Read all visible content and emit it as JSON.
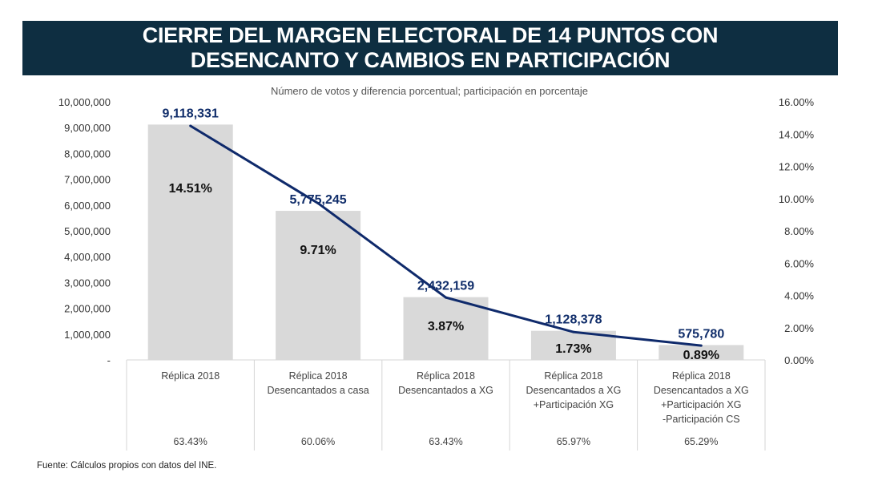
{
  "header": {
    "title_line1": "CIERRE DEL MARGEN ELECTORAL DE 14 PUNTOS CON",
    "title_line2": "DESENCANTO Y CAMBIOS EN PARTICIPACIÓN"
  },
  "chart_data": {
    "type": "bar+line",
    "subtitle": "Número de votos y diferencia porcentual; participación en porcentaje",
    "categories": [
      [
        "Réplica 2018"
      ],
      [
        "Réplica 2018",
        "Desencantados a casa"
      ],
      [
        "Réplica 2018",
        "Desencantados a XG"
      ],
      [
        "Réplica 2018",
        "Desencantados a XG",
        "+Participación XG"
      ],
      [
        "Réplica 2018",
        "Desencantados a XG",
        "+Participación XG",
        "-Participación CS"
      ]
    ],
    "bars": {
      "name": "Número de votos",
      "values": [
        9118331,
        5775245,
        2432159,
        1128378,
        575780
      ],
      "labels": [
        "9,118,331",
        "5,775,245",
        "2,432,159",
        "1,128,378",
        "575,780"
      ],
      "color": "#d9d9d9"
    },
    "line": {
      "name": "Diferencia porcentual",
      "values": [
        14.51,
        9.71,
        3.87,
        1.73,
        0.89
      ],
      "labels": [
        "14.51%",
        "9.71%",
        "3.87%",
        "1.73%",
        "0.89%"
      ],
      "color": "#0f2a6b"
    },
    "participation": [
      "63.43%",
      "60.06%",
      "63.43%",
      "65.97%",
      "65.29%"
    ],
    "y_left": {
      "range": [
        0,
        10000000
      ],
      "ticks": [
        "-",
        "1,000,000",
        "2,000,000",
        "3,000,000",
        "4,000,000",
        "5,000,000",
        "6,000,000",
        "7,000,000",
        "8,000,000",
        "9,000,000",
        "10,000,000"
      ]
    },
    "y_right": {
      "range": [
        0,
        16
      ],
      "ticks": [
        "0.00%",
        "2.00%",
        "4.00%",
        "6.00%",
        "8.00%",
        "10.00%",
        "12.00%",
        "14.00%",
        "16.00%"
      ]
    }
  },
  "source": "Fuente: Cálculos propios con datos del INE."
}
